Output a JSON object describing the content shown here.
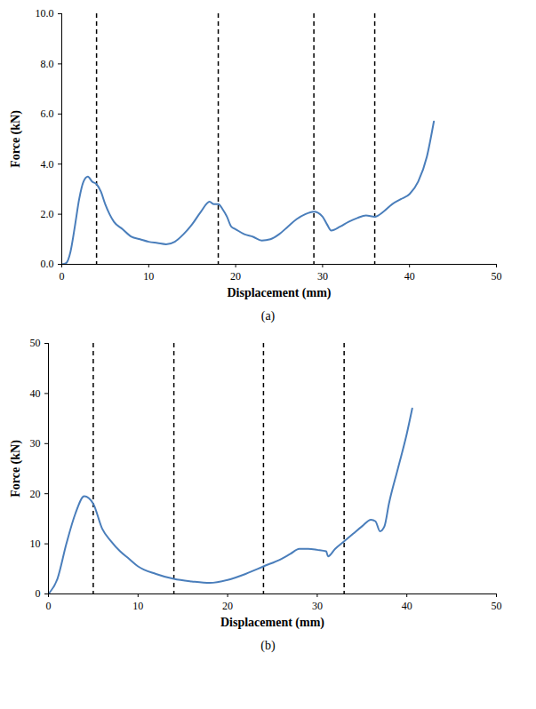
{
  "chart_data": [
    {
      "type": "line",
      "caption": "(a)",
      "x_label": "Displacement (mm)",
      "y_label": "Force (kN)",
      "color": "#4a7ebb",
      "x": [
        0,
        0.5,
        1,
        1.5,
        2,
        2.5,
        3,
        3.5,
        4,
        4.5,
        5,
        5.5,
        6,
        7,
        8,
        9,
        10,
        11,
        12,
        13,
        14,
        15,
        16,
        17,
        17.5,
        18,
        18.5,
        19,
        19.5,
        20,
        21,
        22,
        23,
        24,
        25,
        26,
        27,
        28,
        29,
        30,
        30.5,
        31,
        32,
        33,
        34,
        35,
        36,
        37,
        38,
        39,
        40,
        41,
        42,
        42.8
      ],
      "values": [
        0,
        0.05,
        0.5,
        1.5,
        2.6,
        3.3,
        3.5,
        3.3,
        3.2,
        2.9,
        2.4,
        2.0,
        1.7,
        1.4,
        1.1,
        1.0,
        0.9,
        0.85,
        0.8,
        0.9,
        1.2,
        1.6,
        2.1,
        2.5,
        2.4,
        2.4,
        2.2,
        1.9,
        1.5,
        1.4,
        1.2,
        1.1,
        0.95,
        1.0,
        1.2,
        1.5,
        1.8,
        2.0,
        2.1,
        1.9,
        1.6,
        1.35,
        1.5,
        1.7,
        1.85,
        1.95,
        1.9,
        2.1,
        2.4,
        2.6,
        2.8,
        3.3,
        4.3,
        5.7
      ],
      "vlines": [
        4,
        18,
        29,
        36
      ],
      "xlim": [
        0,
        50
      ],
      "xticks": [
        0,
        10,
        20,
        30,
        40,
        50
      ],
      "ylim": [
        0,
        10
      ],
      "yticks": [
        {
          "value": 0,
          "label": "0.0"
        },
        {
          "value": 2,
          "label": "2.0"
        },
        {
          "value": 4,
          "label": "4.0"
        },
        {
          "value": 6,
          "label": "6.0"
        },
        {
          "value": 8,
          "label": "8.0"
        },
        {
          "value": 10,
          "label": "10.0"
        }
      ],
      "grid": false
    },
    {
      "type": "line",
      "caption": "(b)",
      "x_label": "Displacement (mm)",
      "y_label": "Force (kN)",
      "color": "#4a7ebb",
      "x": [
        0,
        1,
        2,
        3,
        4,
        5,
        6,
        7,
        8,
        9,
        10,
        12,
        14,
        16,
        18,
        20,
        22,
        24,
        26,
        27,
        28,
        29,
        30,
        31,
        31.2,
        32,
        33,
        34,
        35,
        36,
        36.5,
        37,
        37.5,
        38,
        39,
        40,
        40.6
      ],
      "values": [
        0,
        3,
        10,
        16,
        19.5,
        18,
        13,
        10.5,
        8.5,
        7,
        5.5,
        4,
        3,
        2.5,
        2.2,
        2.8,
        4,
        5.5,
        7,
        8,
        9,
        9,
        8.8,
        8.5,
        7.5,
        9,
        10.5,
        12,
        13.5,
        14.8,
        14.5,
        12.5,
        13.5,
        18,
        25,
        32,
        37
      ],
      "vlines": [
        5,
        14,
        24,
        33
      ],
      "xlim": [
        0,
        50
      ],
      "xticks": [
        0,
        10,
        20,
        30,
        40,
        50
      ],
      "ylim": [
        0,
        50
      ],
      "yticks": [
        0,
        10,
        20,
        30,
        40,
        50
      ],
      "grid": false
    }
  ]
}
